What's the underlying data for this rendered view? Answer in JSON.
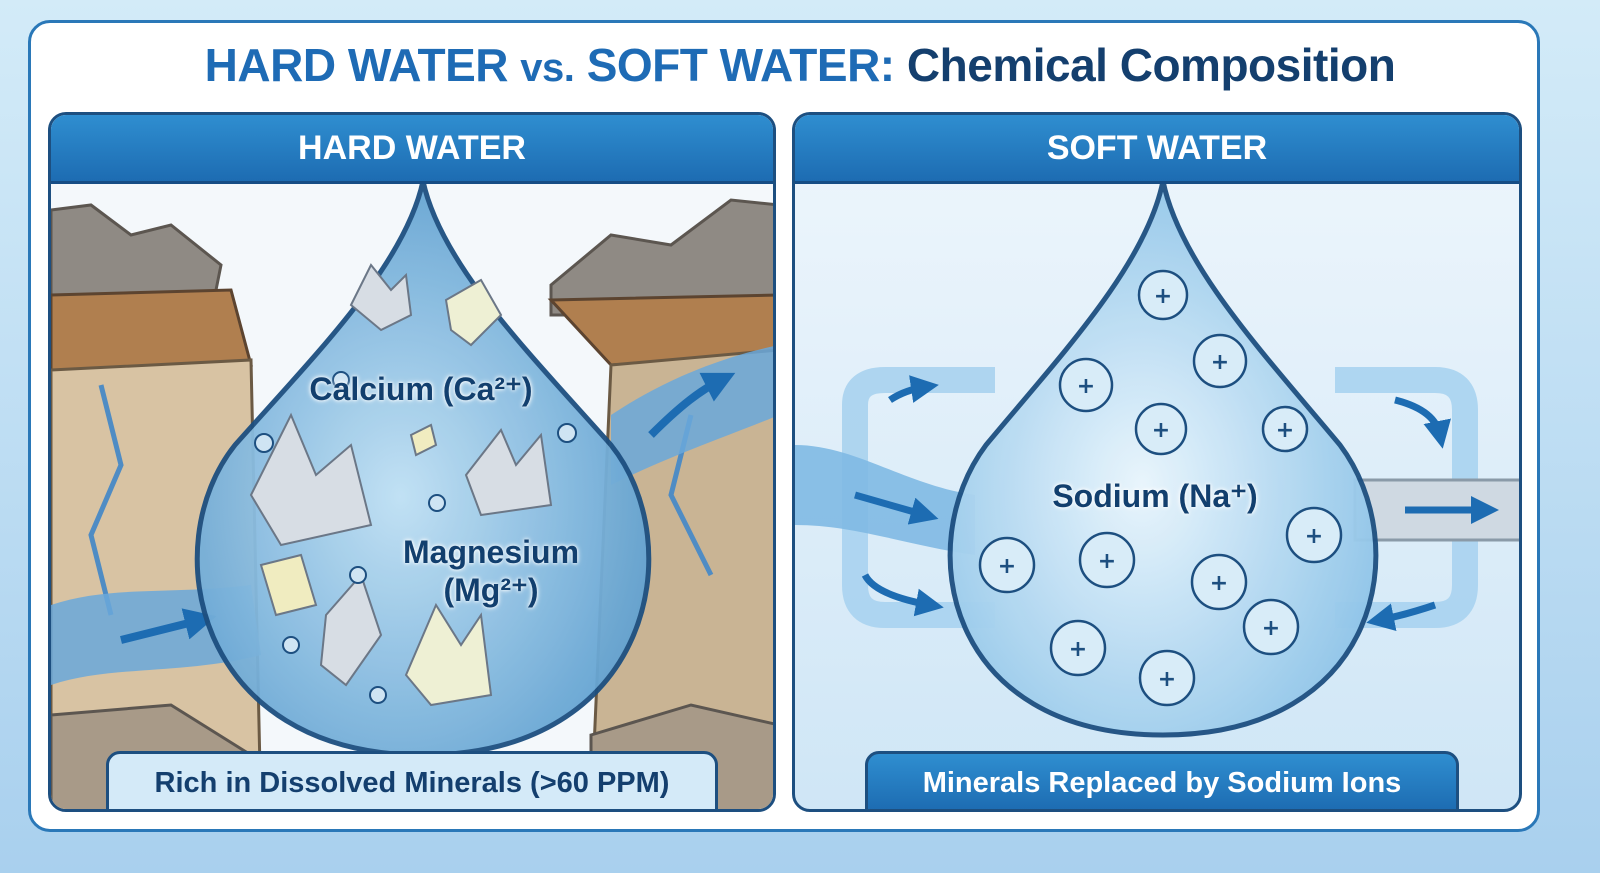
{
  "title": {
    "part1": "HARD WATER",
    "vs": "vs.",
    "part2": "SOFT WATER:",
    "part3": "Chemical Composition"
  },
  "hard": {
    "header": "HARD WATER",
    "label_calcium": "Calcium (Ca²⁺)",
    "label_magnesium_1": "Magnesium",
    "label_magnesium_2": "(Mg²⁺)",
    "caption": "Rich in Dissolved Minerals (>60 PPM)"
  },
  "soft": {
    "header": "SOFT WATER",
    "label_sodium": "Sodium (Na⁺)",
    "caption": "Minerals Replaced by Sodium Ions"
  },
  "colors": {
    "brand_blue": "#1e6bb5",
    "dark_navy": "#143f6e",
    "rock": "#b8a68c",
    "water": "#7fb8e0"
  }
}
